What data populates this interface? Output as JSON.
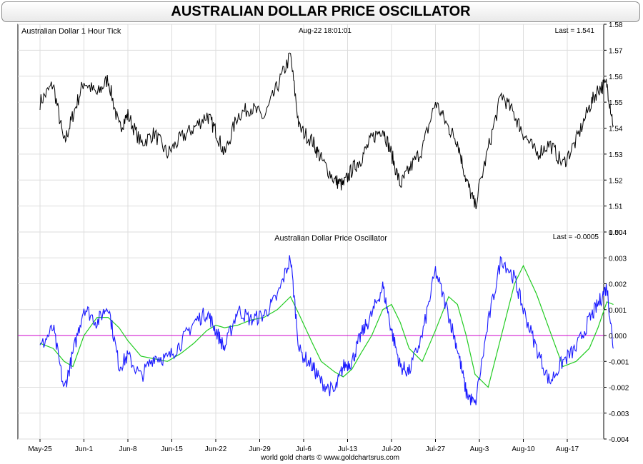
{
  "title": "AUSTRALIAN DOLLAR PRICE OSCILLATOR",
  "footer": "world gold charts © www.goldchartsrus.com",
  "colors": {
    "price_line": "#000000",
    "oscillator_line": "#1a1aff",
    "signal_line": "#22cc22",
    "zero_line": "#cc00cc",
    "grid": "#dddddd"
  },
  "x_tick_labels": [
    "May-25",
    "Jun-1",
    "Jun-8",
    "Jun-15",
    "Jun-22",
    "Jun-29",
    "Jul-6",
    "Jul-13",
    "Jul-20",
    "Jul-27",
    "Aug-3",
    "Aug-10",
    "Aug-17"
  ],
  "chart_data": [
    {
      "type": "line",
      "title": "Australian Dollar 1 Hour Tick",
      "timestamp": "Aug-22  18:01:01",
      "last_label": "Last = 1.541",
      "ylim": [
        1.5,
        1.58
      ],
      "y_ticks": [
        "1.58",
        "1.57",
        "1.56",
        "1.55",
        "1.54",
        "1.53",
        "1.52",
        "1.51",
        "1.50"
      ],
      "x_week_index": [
        0,
        0.3,
        0.55,
        0.75,
        1.0,
        1.3,
        1.55,
        1.8,
        2.0,
        2.3,
        2.6,
        2.9,
        3.2,
        3.5,
        3.8,
        4.0,
        4.2,
        4.5,
        4.8,
        5.1,
        5.4,
        5.7,
        5.9,
        6.2,
        6.4,
        6.7,
        6.9,
        7.1,
        7.3,
        7.55,
        7.8,
        8.0,
        8.2,
        8.4,
        8.7,
        9.0,
        9.3,
        9.5,
        9.7,
        9.9,
        10.2,
        10.5,
        10.8,
        11.0,
        11.3,
        11.6,
        11.9,
        12.2,
        12.5,
        12.7,
        12.9,
        13.05
      ],
      "series": [
        {
          "values": [
            1.55,
            1.557,
            1.534,
            1.545,
            1.558,
            1.553,
            1.559,
            1.54,
            1.545,
            1.534,
            1.538,
            1.53,
            1.536,
            1.54,
            1.545,
            1.539,
            1.53,
            1.545,
            1.548,
            1.544,
            1.556,
            1.568,
            1.54,
            1.535,
            1.528,
            1.52,
            1.518,
            1.524,
            1.528,
            1.536,
            1.54,
            1.53,
            1.518,
            1.524,
            1.532,
            1.55,
            1.54,
            1.535,
            1.52,
            1.51,
            1.532,
            1.553,
            1.545,
            1.538,
            1.53,
            1.534,
            1.526,
            1.535,
            1.548,
            1.555,
            1.557,
            1.541
          ]
        }
      ]
    },
    {
      "type": "line",
      "title": "Australian Dollar Price Oscillator",
      "last_label": "Last = -0.0005",
      "ylim": [
        -0.004,
        0.004
      ],
      "y_ticks": [
        "0.004",
        "0.003",
        "0.002",
        "0.001",
        "0.000",
        "-0.001",
        "-0.002",
        "-0.003",
        "-0.004"
      ],
      "x_week_index": [
        0,
        0.3,
        0.55,
        0.75,
        1.0,
        1.3,
        1.55,
        1.8,
        2.0,
        2.3,
        2.6,
        2.9,
        3.2,
        3.5,
        3.8,
        4.0,
        4.2,
        4.5,
        4.8,
        5.1,
        5.4,
        5.7,
        5.9,
        6.2,
        6.4,
        6.7,
        6.9,
        7.1,
        7.3,
        7.55,
        7.8,
        8.0,
        8.2,
        8.4,
        8.7,
        9.0,
        9.3,
        9.5,
        9.7,
        9.9,
        10.2,
        10.5,
        10.8,
        11.0,
        11.3,
        11.6,
        11.9,
        12.2,
        12.5,
        12.7,
        12.9,
        13.05
      ],
      "series": [
        {
          "role": "oscillator",
          "values": [
            -0.0005,
            0.0003,
            -0.0021,
            -0.0007,
            0.0011,
            0.0005,
            0.0012,
            -0.0012,
            -0.0008,
            -0.0016,
            -0.0008,
            -0.0009,
            -0.0003,
            0.0005,
            0.0009,
            0.0002,
            -0.0005,
            0.001,
            0.0006,
            0.0008,
            0.0015,
            0.003,
            -0.0006,
            -0.0012,
            -0.0018,
            -0.0022,
            -0.0012,
            -0.001,
            0.0,
            0.0008,
            0.0019,
            0.0002,
            -0.0012,
            -0.0014,
            0.0,
            0.0025,
            0.0008,
            -0.0005,
            -0.0022,
            -0.0027,
            0.0005,
            0.003,
            0.0022,
            0.001,
            -0.0005,
            -0.0018,
            -0.001,
            -0.0005,
            0.0006,
            0.0012,
            0.0019,
            -0.0005
          ]
        },
        {
          "role": "signal",
          "values": [
            -0.0003,
            -0.0005,
            -0.001,
            -0.0012,
            0.0,
            0.0007,
            0.0007,
            0.0003,
            -0.0002,
            -0.0008,
            -0.0009,
            -0.001,
            -0.0007,
            -0.0003,
            0.0002,
            0.0004,
            0.0003,
            0.0004,
            0.0006,
            0.0007,
            0.001,
            0.0015,
            0.0008,
            -0.0003,
            -0.001,
            -0.0014,
            -0.0016,
            -0.0013,
            -0.0007,
            0.0,
            0.001,
            0.0012,
            0.0005,
            -0.0005,
            -0.001,
            0.0002,
            0.0015,
            0.0012,
            0.0,
            -0.0015,
            -0.002,
            0.0,
            0.002,
            0.0027,
            0.0016,
            0.0002,
            -0.0012,
            -0.001,
            -0.0005,
            0.0003,
            0.0013,
            0.0012
          ]
        }
      ],
      "zero_line": 0.0
    }
  ]
}
